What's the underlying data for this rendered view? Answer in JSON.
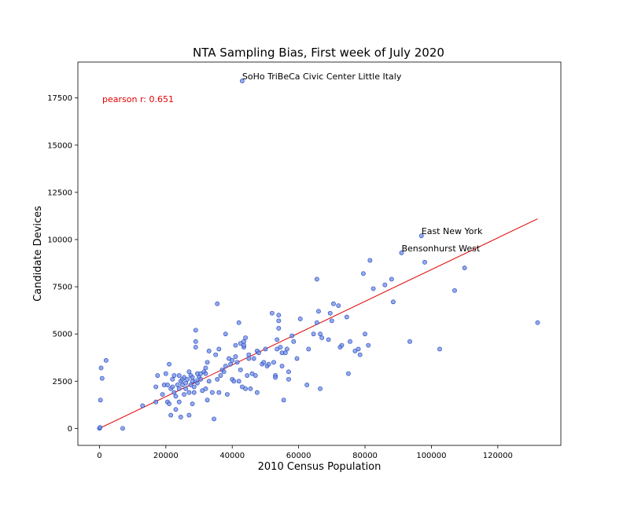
{
  "chart_data": {
    "type": "scatter",
    "title": "NTA Sampling Bias, First week of July 2020",
    "xlabel": "2010 Census Population",
    "ylabel": "Candidate Devices",
    "xlim": [
      -6500,
      139000
    ],
    "ylim": [
      -900,
      19400
    ],
    "xticks": [
      0,
      20000,
      40000,
      60000,
      80000,
      100000,
      120000
    ],
    "yticks": [
      0,
      2500,
      5000,
      7500,
      10000,
      12500,
      15000,
      17500
    ],
    "grid": false,
    "stat_text": "pearson r: 0.651",
    "fit_line": {
      "x": [
        0,
        132000
      ],
      "y": [
        0,
        11100
      ]
    },
    "annotations": [
      {
        "text": "SoHo TriBeCa Civic Center Little Italy",
        "x": 43000,
        "y": 18400
      },
      {
        "text": "East New York",
        "x": 97000,
        "y": 10200
      },
      {
        "text": "Benson­hurst West",
        "x": 91000,
        "y": 9300
      }
    ],
    "series": [
      {
        "points": [
          [
            0,
            0
          ],
          [
            200,
            50
          ],
          [
            300,
            1500
          ],
          [
            500,
            3200
          ],
          [
            800,
            2650
          ],
          [
            2000,
            3600
          ],
          [
            7000,
            0
          ],
          [
            13000,
            1200
          ],
          [
            17000,
            1400
          ],
          [
            17000,
            2200
          ],
          [
            17500,
            2800
          ],
          [
            19000,
            1800
          ],
          [
            19500,
            2300
          ],
          [
            20000,
            2900
          ],
          [
            20500,
            1400
          ],
          [
            20500,
            2300
          ],
          [
            21000,
            3400
          ],
          [
            21000,
            1300
          ],
          [
            21500,
            700
          ],
          [
            21500,
            2100
          ],
          [
            22000,
            2200
          ],
          [
            22000,
            2600
          ],
          [
            22500,
            2800
          ],
          [
            22500,
            1900
          ],
          [
            23000,
            1000
          ],
          [
            23000,
            1700
          ],
          [
            23500,
            2300
          ],
          [
            24000,
            2800
          ],
          [
            24000,
            1400
          ],
          [
            24000,
            2100
          ],
          [
            24500,
            2500
          ],
          [
            24500,
            600
          ],
          [
            25000,
            2600
          ],
          [
            25000,
            2300
          ],
          [
            25500,
            2700
          ],
          [
            25500,
            1800
          ],
          [
            26000,
            2100
          ],
          [
            26000,
            2400
          ],
          [
            26500,
            2600
          ],
          [
            27000,
            1900
          ],
          [
            27000,
            700
          ],
          [
            27000,
            3000
          ],
          [
            27500,
            2800
          ],
          [
            27500,
            2300
          ],
          [
            28000,
            2500
          ],
          [
            28000,
            1300
          ],
          [
            28000,
            2700
          ],
          [
            28500,
            2200
          ],
          [
            28500,
            1900
          ],
          [
            29000,
            2500
          ],
          [
            29000,
            4300
          ],
          [
            29000,
            4600
          ],
          [
            29000,
            5200
          ],
          [
            29500,
            2900
          ],
          [
            29500,
            2400
          ],
          [
            30000,
            2700
          ],
          [
            30500,
            2600
          ],
          [
            30500,
            2900
          ],
          [
            31000,
            2000
          ],
          [
            31500,
            3000
          ],
          [
            32000,
            3200
          ],
          [
            32000,
            2100
          ],
          [
            32000,
            2900
          ],
          [
            32500,
            3500
          ],
          [
            32500,
            1500
          ],
          [
            33000,
            4100
          ],
          [
            33000,
            2500
          ],
          [
            34000,
            1900
          ],
          [
            34500,
            500
          ],
          [
            35000,
            3900
          ],
          [
            35500,
            2600
          ],
          [
            35500,
            6600
          ],
          [
            36000,
            4200
          ],
          [
            36000,
            1900
          ],
          [
            36500,
            2800
          ],
          [
            37000,
            3100
          ],
          [
            37500,
            3000
          ],
          [
            38000,
            5000
          ],
          [
            38000,
            3300
          ],
          [
            38500,
            1800
          ],
          [
            39000,
            3700
          ],
          [
            39500,
            3400
          ],
          [
            40000,
            2600
          ],
          [
            40000,
            3600
          ],
          [
            40500,
            2500
          ],
          [
            41000,
            4400
          ],
          [
            41000,
            3800
          ],
          [
            41500,
            3500
          ],
          [
            42000,
            5600
          ],
          [
            42000,
            2500
          ],
          [
            42500,
            4500
          ],
          [
            42500,
            3100
          ],
          [
            43000,
            2200
          ],
          [
            43000,
            18400
          ],
          [
            43500,
            4300
          ],
          [
            43500,
            4600
          ],
          [
            43500,
            4400
          ],
          [
            44000,
            2100
          ],
          [
            44000,
            4800
          ],
          [
            44500,
            2800
          ],
          [
            45000,
            3700
          ],
          [
            45000,
            3900
          ],
          [
            45500,
            2100
          ],
          [
            46000,
            2900
          ],
          [
            46500,
            3700
          ],
          [
            47000,
            2800
          ],
          [
            47500,
            4100
          ],
          [
            47500,
            1900
          ],
          [
            48000,
            4000
          ],
          [
            49000,
            3400
          ],
          [
            49500,
            3500
          ],
          [
            50000,
            4200
          ],
          [
            50500,
            3300
          ],
          [
            51000,
            3400
          ],
          [
            52000,
            6100
          ],
          [
            52500,
            3500
          ],
          [
            53000,
            2800
          ],
          [
            53000,
            2700
          ],
          [
            53500,
            4700
          ],
          [
            53500,
            4200
          ],
          [
            54000,
            6000
          ],
          [
            54000,
            5300
          ],
          [
            54000,
            5700
          ],
          [
            54500,
            4300
          ],
          [
            55000,
            3300
          ],
          [
            55000,
            4000
          ],
          [
            55500,
            1500
          ],
          [
            56000,
            4000
          ],
          [
            56500,
            4200
          ],
          [
            57000,
            3000
          ],
          [
            57000,
            2600
          ],
          [
            58000,
            4900
          ],
          [
            58500,
            4600
          ],
          [
            59500,
            3700
          ],
          [
            60500,
            5800
          ],
          [
            62500,
            2300
          ],
          [
            63000,
            4200
          ],
          [
            64500,
            5000
          ],
          [
            65500,
            7900
          ],
          [
            65500,
            5600
          ],
          [
            66000,
            6200
          ],
          [
            66500,
            2100
          ],
          [
            66500,
            5000
          ],
          [
            67000,
            4800
          ],
          [
            69000,
            4700
          ],
          [
            69500,
            6100
          ],
          [
            70000,
            5700
          ],
          [
            70500,
            6600
          ],
          [
            72000,
            6500
          ],
          [
            72500,
            4300
          ],
          [
            73000,
            4400
          ],
          [
            74500,
            5900
          ],
          [
            75000,
            2900
          ],
          [
            75500,
            4600
          ],
          [
            77000,
            4100
          ],
          [
            78000,
            4200
          ],
          [
            78500,
            3900
          ],
          [
            79500,
            8200
          ],
          [
            80000,
            5000
          ],
          [
            81000,
            4400
          ],
          [
            81500,
            8900
          ],
          [
            82500,
            7400
          ],
          [
            86000,
            7600
          ],
          [
            88000,
            7900
          ],
          [
            88500,
            6700
          ],
          [
            91000,
            9300
          ],
          [
            93500,
            4600
          ],
          [
            97000,
            10200
          ],
          [
            98000,
            8800
          ],
          [
            102500,
            4200
          ],
          [
            107000,
            7300
          ],
          [
            110000,
            8500
          ],
          [
            132000,
            5600
          ]
        ]
      }
    ]
  }
}
